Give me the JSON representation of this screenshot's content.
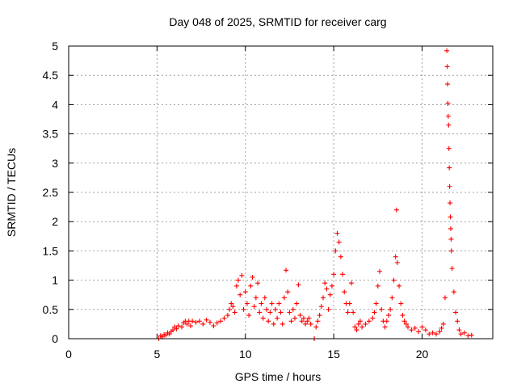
{
  "chart_data": {
    "type": "scatter",
    "title": "Day 048 of 2025, SRMTID for receiver carg",
    "xlabel": "GPS time / hours",
    "ylabel": "SRMTID / TECUs",
    "xlim": [
      0,
      24
    ],
    "ylim": [
      0,
      5
    ],
    "x_ticks": [
      "0",
      "5",
      "10",
      "15",
      "20"
    ],
    "y_ticks": [
      "0",
      "0.5",
      "1",
      "1.5",
      "2",
      "2.5",
      "3",
      "3.5",
      "4",
      "4.5",
      "5"
    ],
    "grid": true,
    "marker": "+",
    "series": [
      {
        "name": "SRMTID",
        "color": "#ff0000",
        "points": [
          [
            5.1,
            0.0
          ],
          [
            5.2,
            0.05
          ],
          [
            5.3,
            0.03
          ],
          [
            5.4,
            0.07
          ],
          [
            5.5,
            0.06
          ],
          [
            5.6,
            0.1
          ],
          [
            5.7,
            0.08
          ],
          [
            5.8,
            0.12
          ],
          [
            5.9,
            0.15
          ],
          [
            6.0,
            0.2
          ],
          [
            6.1,
            0.17
          ],
          [
            6.2,
            0.22
          ],
          [
            6.4,
            0.2
          ],
          [
            6.5,
            0.27
          ],
          [
            6.6,
            0.3
          ],
          [
            6.7,
            0.25
          ],
          [
            6.8,
            0.3
          ],
          [
            6.9,
            0.22
          ],
          [
            7.0,
            0.3
          ],
          [
            7.2,
            0.28
          ],
          [
            7.4,
            0.3
          ],
          [
            7.6,
            0.25
          ],
          [
            7.8,
            0.32
          ],
          [
            8.0,
            0.28
          ],
          [
            8.2,
            0.22
          ],
          [
            8.4,
            0.27
          ],
          [
            8.6,
            0.3
          ],
          [
            8.8,
            0.35
          ],
          [
            9.0,
            0.4
          ],
          [
            9.1,
            0.5
          ],
          [
            9.2,
            0.6
          ],
          [
            9.3,
            0.55
          ],
          [
            9.4,
            0.45
          ],
          [
            9.5,
            0.9
          ],
          [
            9.6,
            1.0
          ],
          [
            9.7,
            0.75
          ],
          [
            9.8,
            1.08
          ],
          [
            9.9,
            0.5
          ],
          [
            10.0,
            0.8
          ],
          [
            10.1,
            0.6
          ],
          [
            10.2,
            0.4
          ],
          [
            10.3,
            0.9
          ],
          [
            10.4,
            1.05
          ],
          [
            10.5,
            0.55
          ],
          [
            10.6,
            0.7
          ],
          [
            10.7,
            0.95
          ],
          [
            10.8,
            0.45
          ],
          [
            10.9,
            0.6
          ],
          [
            11.0,
            0.35
          ],
          [
            11.1,
            0.7
          ],
          [
            11.2,
            0.5
          ],
          [
            11.3,
            0.3
          ],
          [
            11.4,
            0.45
          ],
          [
            11.5,
            0.6
          ],
          [
            11.6,
            0.25
          ],
          [
            11.7,
            0.5
          ],
          [
            11.8,
            0.35
          ],
          [
            11.9,
            0.6
          ],
          [
            12.0,
            0.45
          ],
          [
            12.1,
            0.25
          ],
          [
            12.2,
            0.7
          ],
          [
            12.3,
            1.17
          ],
          [
            12.4,
            0.8
          ],
          [
            12.5,
            0.45
          ],
          [
            12.6,
            0.3
          ],
          [
            12.7,
            0.5
          ],
          [
            12.8,
            0.35
          ],
          [
            12.9,
            0.6
          ],
          [
            13.0,
            0.92
          ],
          [
            13.1,
            0.4
          ],
          [
            13.2,
            0.3
          ],
          [
            13.3,
            0.35
          ],
          [
            13.4,
            0.25
          ],
          [
            13.5,
            0.3
          ],
          [
            13.6,
            0.35
          ],
          [
            13.7,
            0.25
          ],
          [
            13.9,
            0.0
          ],
          [
            14.0,
            0.2
          ],
          [
            14.1,
            0.3
          ],
          [
            14.2,
            0.4
          ],
          [
            14.3,
            0.55
          ],
          [
            14.4,
            0.7
          ],
          [
            14.5,
            0.95
          ],
          [
            14.6,
            0.85
          ],
          [
            14.7,
            0.5
          ],
          [
            14.8,
            0.75
          ],
          [
            14.9,
            0.9
          ],
          [
            15.0,
            1.1
          ],
          [
            15.1,
            1.5
          ],
          [
            15.2,
            1.8
          ],
          [
            15.3,
            1.65
          ],
          [
            15.4,
            1.4
          ],
          [
            15.5,
            1.1
          ],
          [
            15.6,
            0.8
          ],
          [
            15.7,
            0.6
          ],
          [
            15.8,
            0.45
          ],
          [
            15.9,
            0.6
          ],
          [
            16.0,
            0.95
          ],
          [
            16.1,
            0.45
          ],
          [
            16.2,
            0.2
          ],
          [
            16.3,
            0.15
          ],
          [
            16.4,
            0.25
          ],
          [
            16.5,
            0.3
          ],
          [
            16.6,
            0.2
          ],
          [
            16.8,
            0.25
          ],
          [
            17.0,
            0.3
          ],
          [
            17.2,
            0.35
          ],
          [
            17.3,
            0.45
          ],
          [
            17.4,
            0.6
          ],
          [
            17.5,
            0.9
          ],
          [
            17.6,
            1.15
          ],
          [
            17.7,
            0.5
          ],
          [
            17.8,
            0.3
          ],
          [
            17.9,
            0.2
          ],
          [
            18.0,
            0.3
          ],
          [
            18.1,
            0.4
          ],
          [
            18.2,
            0.5
          ],
          [
            18.3,
            0.7
          ],
          [
            18.4,
            1.0
          ],
          [
            18.5,
            1.4
          ],
          [
            18.55,
            2.2
          ],
          [
            18.6,
            1.3
          ],
          [
            18.7,
            0.9
          ],
          [
            18.8,
            0.6
          ],
          [
            18.9,
            0.4
          ],
          [
            19.0,
            0.3
          ],
          [
            19.1,
            0.25
          ],
          [
            19.2,
            0.2
          ],
          [
            19.4,
            0.15
          ],
          [
            19.6,
            0.18
          ],
          [
            19.8,
            0.12
          ],
          [
            20.0,
            0.2
          ],
          [
            20.2,
            0.15
          ],
          [
            20.4,
            0.08
          ],
          [
            20.6,
            0.1
          ],
          [
            20.8,
            0.08
          ],
          [
            21.0,
            0.12
          ],
          [
            21.1,
            0.18
          ],
          [
            21.2,
            0.25
          ],
          [
            21.3,
            0.7
          ],
          [
            21.4,
            4.92
          ],
          [
            21.42,
            4.65
          ],
          [
            21.44,
            4.35
          ],
          [
            21.46,
            4.02
          ],
          [
            21.48,
            3.8
          ],
          [
            21.5,
            3.65
          ],
          [
            21.52,
            3.25
          ],
          [
            21.54,
            2.92
          ],
          [
            21.56,
            2.6
          ],
          [
            21.58,
            2.32
          ],
          [
            21.6,
            2.08
          ],
          [
            21.62,
            1.88
          ],
          [
            21.64,
            1.7
          ],
          [
            21.66,
            1.5
          ],
          [
            21.7,
            1.2
          ],
          [
            21.8,
            0.8
          ],
          [
            21.9,
            0.45
          ],
          [
            22.0,
            0.3
          ],
          [
            22.1,
            0.15
          ],
          [
            22.2,
            0.08
          ],
          [
            22.4,
            0.1
          ],
          [
            22.6,
            0.05
          ],
          [
            22.8,
            0.06
          ]
        ]
      }
    ]
  }
}
